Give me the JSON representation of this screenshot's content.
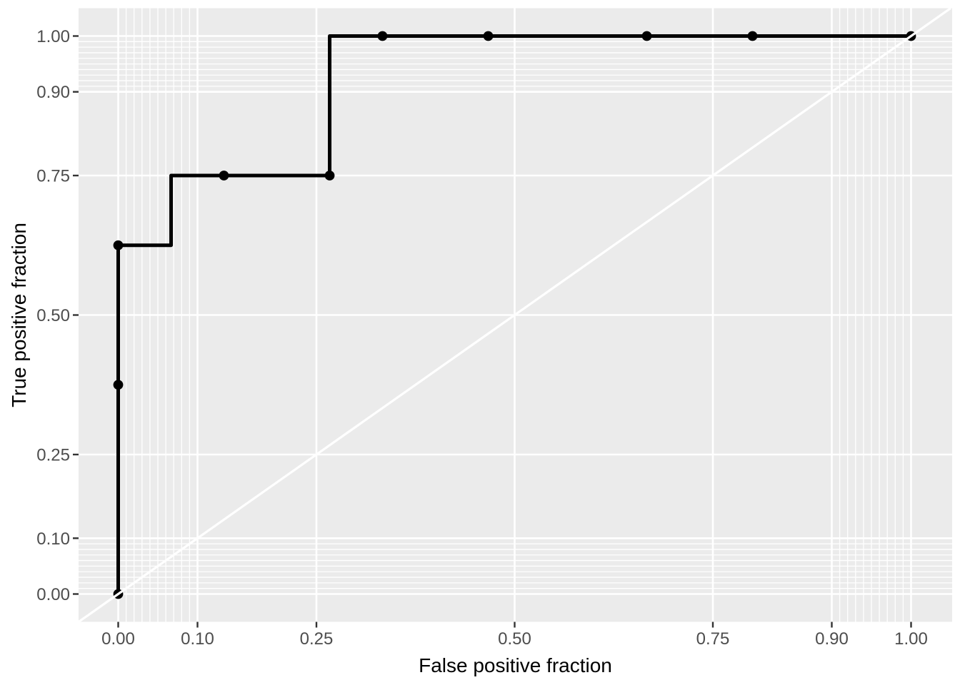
{
  "chart_data": {
    "type": "line",
    "subtype": "roc_step_curve",
    "title": "",
    "xlabel": "False positive fraction",
    "ylabel": "True positive fraction",
    "xlim": [
      -0.05,
      1.05
    ],
    "ylim": [
      -0.05,
      1.05
    ],
    "grid": true,
    "legend": "none",
    "x_major_ticks": [
      0,
      0.1,
      0.25,
      0.5,
      0.75,
      0.9,
      1
    ],
    "x_tick_labels": [
      "0.00",
      "0.10",
      "0.25",
      "0.50",
      "0.75",
      "0.90",
      "1.00"
    ],
    "y_major_ticks": [
      0,
      0.1,
      0.25,
      0.5,
      0.75,
      0.9,
      1
    ],
    "y_tick_labels": [
      "0.00",
      "0.10",
      "0.25",
      "0.50",
      "0.75",
      "0.90",
      "1.00"
    ],
    "minor_breaks": [
      0,
      0.01,
      0.02,
      0.03,
      0.04,
      0.05,
      0.06,
      0.07,
      0.08,
      0.09,
      0.1,
      0.9,
      0.91,
      0.92,
      0.93,
      0.94,
      0.95,
      0.96,
      0.97,
      0.98,
      0.99,
      1
    ],
    "series": [
      {
        "name": "empirical-roc-curve",
        "draw": "step",
        "cutoff_points": [
          [
            0,
            0
          ],
          [
            0,
            0.375
          ],
          [
            0,
            0.625
          ],
          [
            0.1333,
            0.75
          ],
          [
            0.2667,
            0.75
          ],
          [
            0.3333,
            1
          ],
          [
            0.4667,
            1
          ],
          [
            0.6667,
            1
          ],
          [
            0.8,
            1
          ],
          [
            1,
            1
          ]
        ],
        "step_vertices": [
          [
            0,
            0
          ],
          [
            0,
            0.375
          ],
          [
            0,
            0.625
          ],
          [
            0.0667,
            0.625
          ],
          [
            0.0667,
            0.75
          ],
          [
            0.1333,
            0.75
          ],
          [
            0.2667,
            0.75
          ],
          [
            0.2667,
            1
          ],
          [
            0.3333,
            1
          ],
          [
            0.4667,
            1
          ],
          [
            0.6667,
            1
          ],
          [
            0.8,
            1
          ],
          [
            1,
            1
          ]
        ],
        "color": "#000000"
      },
      {
        "name": "chance-diagonal-guide",
        "draw": "line",
        "points": [
          [
            -0.05,
            -0.05
          ],
          [
            1.05,
            1.05
          ]
        ],
        "color": "#FFFFFF"
      }
    ],
    "colors": {
      "page_background": "#FFFFFF",
      "panel_background": "#EBEBEB",
      "gridline_major": "#FFFFFF",
      "gridline_minor": "#FFFFFF",
      "curve": "#000000",
      "diagonal_guide": "#FFFFFF",
      "axis_text": "#4D4D4D",
      "axis_title": "#000000",
      "tick_mark": "#333333"
    }
  }
}
